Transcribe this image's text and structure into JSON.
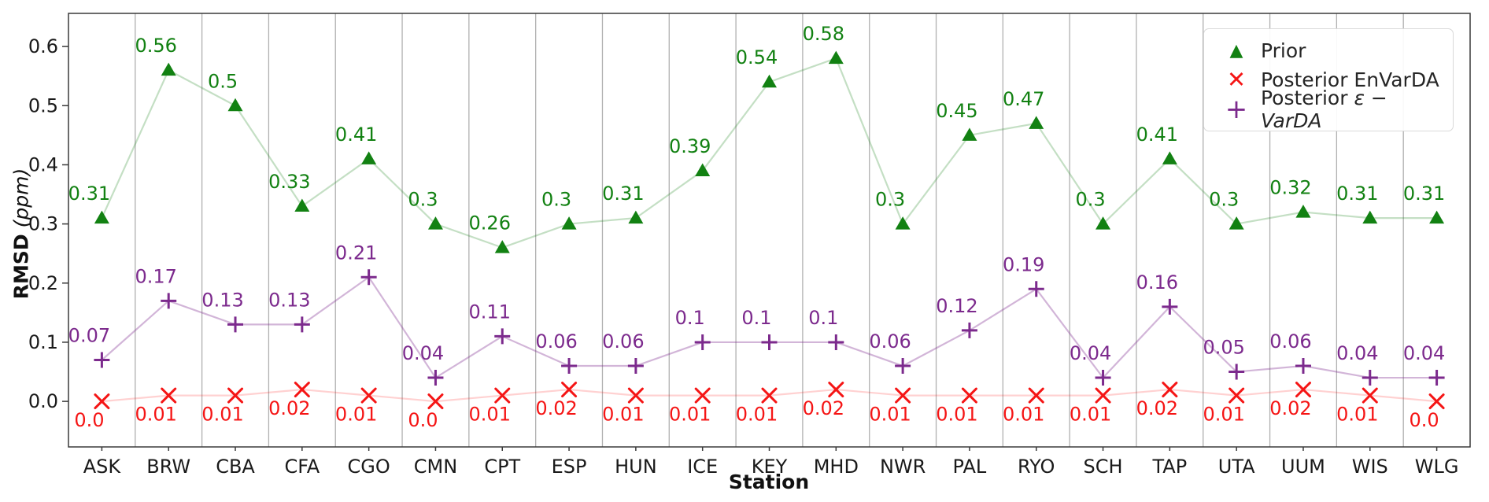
{
  "figure": {
    "xlabel": "Station",
    "ylabel_main": "RMSD",
    "ylabel_unit": " (ppm)",
    "background": "#ffffff",
    "gridline_color": "#b0b0b0",
    "spine_color": "#3a3a3a",
    "tick_label_color": "#1a1a1a"
  },
  "legend": {
    "items": [
      {
        "label": "Prior",
        "marker": "triangle-icon",
        "color": "#128112"
      },
      {
        "label": "Posterior EnVarDA",
        "marker": "x-icon",
        "color": "#f51515"
      },
      {
        "label_prefix": "Posterior ",
        "label_italic": "ε − VarDA",
        "marker": "plus-icon",
        "color": "#7c2a8d"
      }
    ]
  },
  "chart_data": {
    "type": "line",
    "title": "",
    "xlabel": "Station",
    "ylabel": "RMSD (ppm)",
    "categories": [
      "ASK",
      "BRW",
      "CBA",
      "CFA",
      "CGO",
      "CMN",
      "CPT",
      "ESP",
      "HUN",
      "ICE",
      "KEY",
      "MHD",
      "NWR",
      "PAL",
      "RYO",
      "SCH",
      "TAP",
      "UTA",
      "UUM",
      "WIS",
      "WLG"
    ],
    "series": [
      {
        "name": "Prior",
        "marker": "triangle",
        "color": "#128112",
        "line_color": "rgba(18,129,18,0.25)",
        "label_position": "above",
        "values": [
          0.31,
          0.56,
          0.5,
          0.33,
          0.41,
          0.3,
          0.26,
          0.3,
          0.31,
          0.39,
          0.54,
          0.58,
          0.3,
          0.45,
          0.47,
          0.3,
          0.41,
          0.3,
          0.32,
          0.31,
          0.31
        ],
        "labels": [
          "0.31",
          "0.56",
          "0.5",
          "0.33",
          "0.41",
          "0.3",
          "0.26",
          "0.3",
          "0.31",
          "0.39",
          "0.54",
          "0.58",
          "0.3",
          "0.45",
          "0.47",
          "0.3",
          "0.41",
          "0.3",
          "0.32",
          "0.31",
          "0.31"
        ]
      },
      {
        "name": "Posterior ε − VarDA",
        "marker": "plus",
        "color": "#7c2a8d",
        "line_color": "rgba(126,42,142,0.35)",
        "label_position": "above",
        "values": [
          0.07,
          0.17,
          0.13,
          0.13,
          0.21,
          0.04,
          0.11,
          0.06,
          0.06,
          0.1,
          0.1,
          0.1,
          0.06,
          0.12,
          0.19,
          0.04,
          0.16,
          0.05,
          0.06,
          0.04,
          0.04
        ],
        "labels": [
          "0.07",
          "0.17",
          "0.13",
          "0.13",
          "0.21",
          "0.04",
          "0.11",
          "0.06",
          "0.06",
          "0.1",
          "0.1",
          "0.1",
          "0.06",
          "0.12",
          "0.19",
          "0.04",
          "0.16",
          "0.05",
          "0.06",
          "0.04",
          "0.04"
        ]
      },
      {
        "name": "Posterior EnVarDA",
        "marker": "x",
        "color": "#f51515",
        "line_color": "rgba(255,0,0,0.18)",
        "label_position": "below",
        "values": [
          0.0,
          0.01,
          0.01,
          0.02,
          0.01,
          0.0,
          0.01,
          0.02,
          0.01,
          0.01,
          0.01,
          0.02,
          0.01,
          0.01,
          0.01,
          0.01,
          0.02,
          0.01,
          0.02,
          0.01,
          0.0
        ],
        "labels": [
          "0.0",
          "0.01",
          "0.01",
          "0.02",
          "0.01",
          "0.0",
          "0.01",
          "0.02",
          "0.01",
          "0.01",
          "0.01",
          "0.02",
          "0.01",
          "0.01",
          "0.01",
          "0.01",
          "0.02",
          "0.01",
          "0.02",
          "0.01",
          "0.0"
        ]
      }
    ],
    "ylim": [
      -0.077,
      0.656
    ],
    "yticks": [
      {
        "value": 0.0,
        "label": "0.0"
      },
      {
        "value": 0.1,
        "label": "0.1"
      },
      {
        "value": 0.2,
        "label": "0.2"
      },
      {
        "value": 0.3,
        "label": "0.3"
      },
      {
        "value": 0.4,
        "label": "0.4"
      },
      {
        "value": 0.5,
        "label": "0.5"
      },
      {
        "value": 0.6,
        "label": "0.6"
      },
      {
        "value": 0.6,
        "label": ""
      }
    ],
    "grid": "vertical-between-categories",
    "legend_position": "upper-right"
  }
}
